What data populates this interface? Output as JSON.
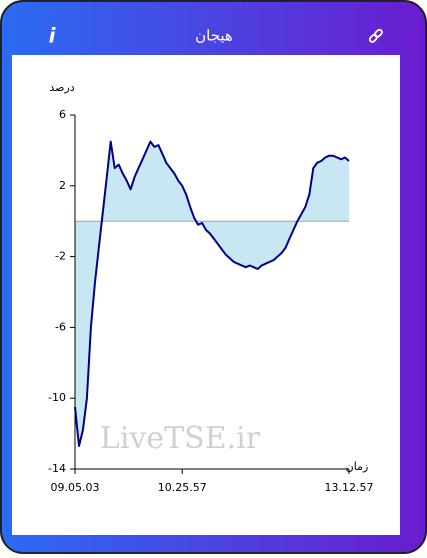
{
  "header": {
    "title": "هیجان",
    "info_icon": "i"
  },
  "chart_data": {
    "type": "area",
    "ylabel": "درصد",
    "xlabel": "زمان",
    "watermark": "LiveTSE.ir",
    "categories": [
      "09.05.03",
      null,
      null,
      null,
      null,
      null,
      null,
      null,
      null,
      null,
      null,
      null,
      null,
      null,
      null,
      null,
      null,
      null,
      null,
      null,
      null,
      null,
      null,
      null,
      null,
      null,
      null,
      "10.25.57",
      null,
      null,
      null,
      null,
      null,
      null,
      null,
      null,
      null,
      null,
      null,
      null,
      null,
      null,
      null,
      null,
      null,
      null,
      null,
      null,
      null,
      null,
      null,
      null,
      null,
      null,
      null,
      null,
      null,
      null,
      null,
      null,
      null,
      null,
      null,
      null,
      null,
      null,
      null,
      null,
      null,
      "13.12.57"
    ],
    "values": [
      -10.5,
      -12.7,
      -11.8,
      -10,
      -6,
      -3.5,
      -1.5,
      0.5,
      2.5,
      4.5,
      3.0,
      3.2,
      2.7,
      2.3,
      1.8,
      2.5,
      3.0,
      3.5,
      4.0,
      4.5,
      4.2,
      4.3,
      3.8,
      3.3,
      3.0,
      2.7,
      2.3,
      2.0,
      1.5,
      0.8,
      0.2,
      -0.2,
      -0.1,
      -0.5,
      -0.7,
      -1.0,
      -1.3,
      -1.6,
      -1.9,
      -2.1,
      -2.3,
      -2.4,
      -2.5,
      -2.6,
      -2.5,
      -2.6,
      -2.7,
      -2.5,
      -2.4,
      -2.3,
      -2.2,
      -2.0,
      -1.8,
      -1.5,
      -1.0,
      -0.5,
      0.0,
      0.4,
      0.8,
      1.5,
      3.0,
      3.3,
      3.4,
      3.6,
      3.7,
      3.7,
      3.6,
      3.5,
      3.6,
      3.4
    ],
    "color": "#00008b",
    "fill_color": "#c8e7f2",
    "ylim": [
      -14,
      6
    ],
    "yticks": [
      -14,
      -10,
      -6,
      -2,
      2,
      6
    ]
  }
}
